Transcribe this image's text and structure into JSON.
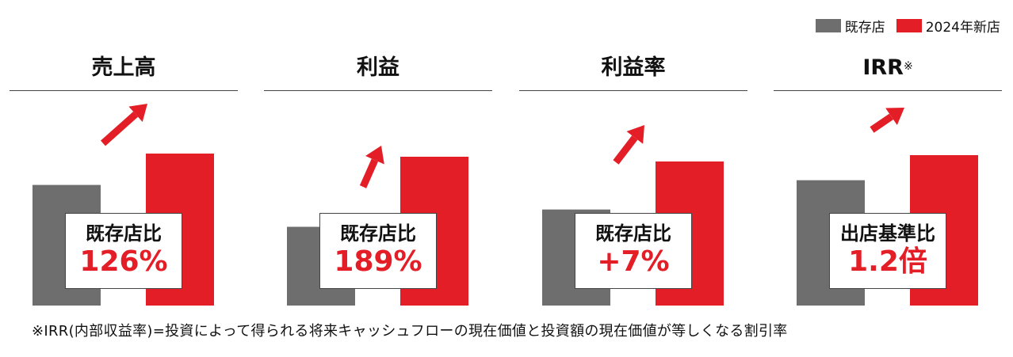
{
  "legend": {
    "items": [
      {
        "name": "既存店",
        "color": "#6e6e6e"
      },
      {
        "name": "2024年新店",
        "color": "#e41e26"
      }
    ]
  },
  "footnote": "※IRR(内部収益率)=投資によって得られる将来キャッシュフローの現在価値と投資額の現在価値が等しくなる割引率",
  "chart_data": [
    {
      "type": "bar",
      "title": "売上高",
      "title_mark": "",
      "categories": [
        "既存店",
        "2024年新店"
      ],
      "values": [
        100,
        126
      ],
      "callout": {
        "label": "既存店比",
        "value": "126%"
      }
    },
    {
      "type": "bar",
      "title": "利益",
      "title_mark": "",
      "categories": [
        "既存店",
        "2024年新店"
      ],
      "values": [
        100,
        189
      ],
      "callout": {
        "label": "既存店比",
        "value": "189%"
      }
    },
    {
      "type": "bar",
      "title": "利益率",
      "title_mark": "",
      "categories": [
        "既存店",
        "2024年新店"
      ],
      "values": [
        100,
        150
      ],
      "callout": {
        "label": "既存店比",
        "value": "+7%"
      }
    },
    {
      "type": "bar",
      "title": "IRR",
      "title_mark": "※",
      "categories": [
        "出店基準",
        "2024年新店"
      ],
      "values": [
        1.0,
        1.2
      ],
      "callout": {
        "label": "出店基準比",
        "value": "1.2倍"
      }
    }
  ]
}
